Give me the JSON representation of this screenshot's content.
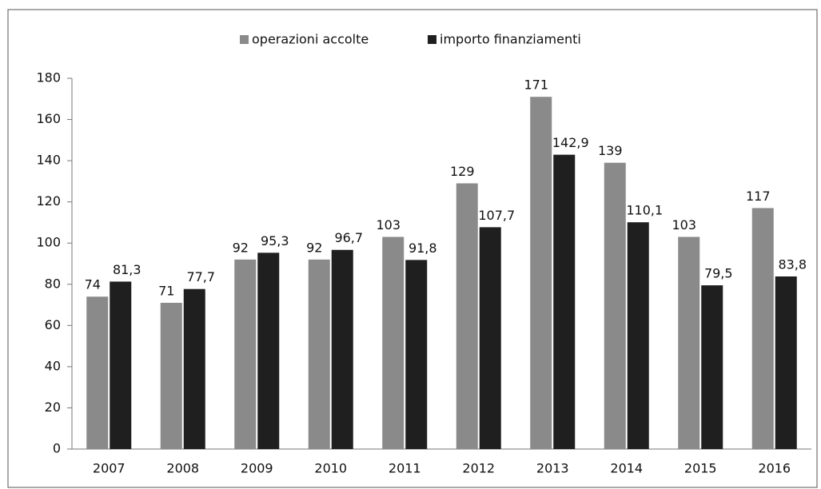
{
  "chart_data": {
    "type": "bar",
    "categories": [
      "2007",
      "2008",
      "2009",
      "2010",
      "2011",
      "2012",
      "2013",
      "2014",
      "2015",
      "2016"
    ],
    "series": [
      {
        "name": "operazioni accolte",
        "color": "#8a8a8a",
        "values": [
          74,
          71,
          92,
          92,
          103,
          129,
          171,
          139,
          103,
          117
        ]
      },
      {
        "name": "importo finanziamenti",
        "color": "#1f1f1f",
        "values": [
          81.3,
          77.7,
          95.3,
          96.7,
          91.8,
          107.7,
          142.9,
          110.1,
          79.5,
          83.8
        ],
        "value_labels": [
          "81,3",
          "77,7",
          "95,3",
          "96,7",
          "91,8",
          "107,7",
          "142,9",
          "110,1",
          "79,5",
          "83,8"
        ]
      }
    ],
    "ylim": [
      0,
      180
    ],
    "yticks": [
      0,
      20,
      40,
      60,
      80,
      100,
      120,
      140,
      160,
      180
    ],
    "legend": "top"
  }
}
